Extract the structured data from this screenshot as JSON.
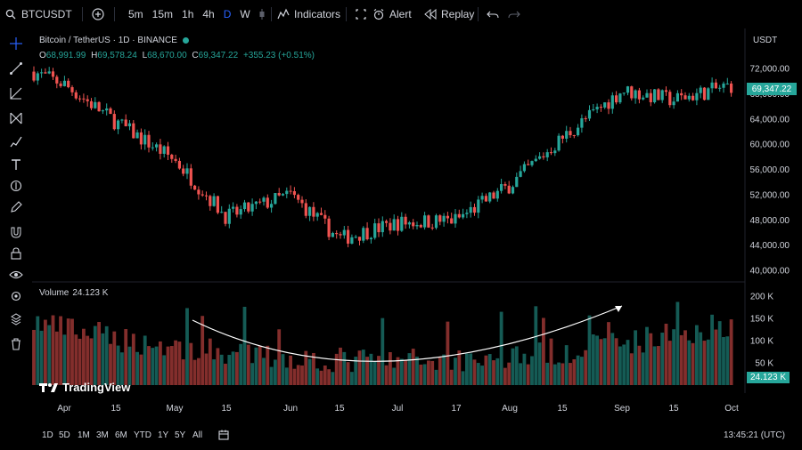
{
  "header": {
    "symbol": "BTCUSDT",
    "timeframes": [
      "5m",
      "15m",
      "1h",
      "4h",
      "D",
      "W"
    ],
    "active_timeframe": "D",
    "indicators_label": "Indicators",
    "alert_label": "Alert",
    "replay_label": "Replay"
  },
  "legend": {
    "title": "Bitcoin / TetherUS · 1D · BINANCE",
    "open_key": "O",
    "open": "68,991.99",
    "high_key": "H",
    "high": "69,578.24",
    "low_key": "L",
    "low": "68,670.00",
    "close_key": "C",
    "close": "69,347.22",
    "change": "+355.23 (+0.51%)"
  },
  "volume_legend": {
    "label": "Volume",
    "value": "24.123 K"
  },
  "price_axis": {
    "currency": "USDT",
    "ticks": [
      "72,000.00",
      "68,000.00",
      "64,000.00",
      "60,000.00",
      "56,000.00",
      "52,000.00",
      "48,000.00",
      "44,000.00",
      "40,000.00"
    ],
    "last_price": "69,347.22"
  },
  "volume_axis": {
    "ticks": [
      "200 K",
      "150 K",
      "100 K",
      "50 K"
    ],
    "last_volume": "24.123 K"
  },
  "time_axis": {
    "labels": [
      "Apr",
      "15",
      "May",
      "15",
      "Jun",
      "15",
      "Jul",
      "17",
      "Aug",
      "15",
      "Sep",
      "15",
      "Oct"
    ]
  },
  "bottom": {
    "ranges": [
      "1D",
      "5D",
      "1M",
      "3M",
      "6M",
      "YTD",
      "1Y",
      "5Y",
      "All"
    ],
    "clock": "13:45:21 (UTC)"
  },
  "brand": "TradingView",
  "colors": {
    "up": "#26a69a",
    "down": "#ef5350",
    "accent": "#2962ff",
    "background": "#000000"
  },
  "chart_data": {
    "type": "candlestick",
    "price_range": [
      40000,
      72000
    ],
    "volume_range": [
      0,
      200000
    ],
    "key_points": [
      {
        "x": "Apr 1",
        "y": 69500
      },
      {
        "x": "Apr 15",
        "y": 63500
      },
      {
        "x": "May 1",
        "y": 57500
      },
      {
        "x": "May 15",
        "y": 48500
      },
      {
        "x": "Jun 1",
        "y": 52000
      },
      {
        "x": "Jun 15",
        "y": 45000
      },
      {
        "x": "Jul 1",
        "y": 47500
      },
      {
        "x": "Jul 17",
        "y": 48000
      },
      {
        "x": "Aug 1",
        "y": 53500
      },
      {
        "x": "Aug 15",
        "y": 61000
      },
      {
        "x": "Sep 1",
        "y": 68500
      },
      {
        "x": "Sep 15",
        "y": 67000
      },
      {
        "x": "Oct 1",
        "y": 69347
      }
    ],
    "volume_trend": "U-shaped arc overlay rising toward Sep"
  }
}
